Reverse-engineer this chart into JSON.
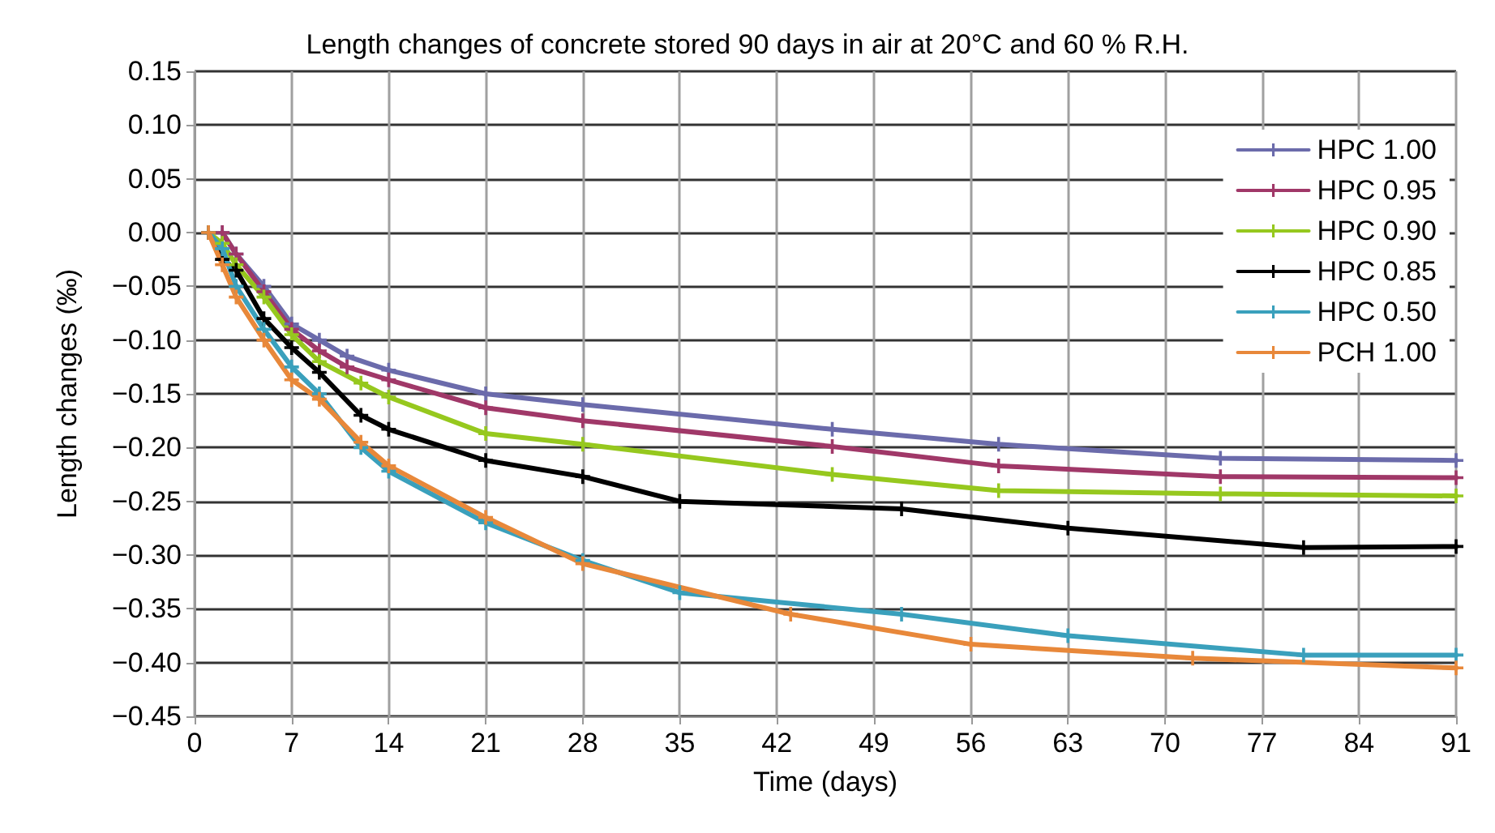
{
  "chart_data": {
    "type": "line",
    "title": "Length changes of concrete stored 90 days in air at 20°C and 60 % R.H.",
    "xlabel": "Time (days)",
    "ylabel": "Length changes (‰)",
    "xlim": [
      0,
      91
    ],
    "xticks": [
      0,
      7,
      14,
      21,
      28,
      35,
      42,
      49,
      56,
      63,
      70,
      77,
      84,
      91
    ],
    "ylim": [
      -0.45,
      0.15
    ],
    "yticks": [
      {
        "value": -0.45,
        "label": "−0.45"
      },
      {
        "value": -0.4,
        "label": "−0.40"
      },
      {
        "value": -0.35,
        "label": "−0.35"
      },
      {
        "value": -0.3,
        "label": "−0.30"
      },
      {
        "value": -0.25,
        "label": "−0.25"
      },
      {
        "value": -0.2,
        "label": "−0.20"
      },
      {
        "value": -0.15,
        "label": "−0.15"
      },
      {
        "value": -0.1,
        "label": "−0.10"
      },
      {
        "value": -0.05,
        "label": "−0.05"
      },
      {
        "value": 0,
        "label": "0.00"
      },
      {
        "value": 0.05,
        "label": "0.05"
      },
      {
        "value": 0.1,
        "label": "0.10"
      },
      {
        "value": 0.15,
        "label": "0.15"
      }
    ],
    "grid": true,
    "legend": "top right",
    "marker": "cross",
    "line_style": "solid",
    "series": [
      {
        "name": "HPC 1.00",
        "color": "#6b6bab",
        "x": [
          2,
          3,
          5,
          7,
          9,
          11,
          14,
          21,
          28,
          46,
          58,
          74,
          91
        ],
        "values": [
          0.0,
          -0.02,
          -0.05,
          -0.085,
          -0.1,
          -0.115,
          -0.128,
          -0.15,
          -0.16,
          -0.183,
          -0.197,
          -0.21,
          -0.212
        ]
      },
      {
        "name": "HPC 0.95",
        "color": "#a03868",
        "x": [
          2,
          3,
          5,
          7,
          9,
          11,
          14,
          21,
          28,
          46,
          58,
          74,
          91
        ],
        "values": [
          0.0,
          -0.02,
          -0.055,
          -0.09,
          -0.11,
          -0.125,
          -0.137,
          -0.163,
          -0.175,
          -0.199,
          -0.217,
          -0.227,
          -0.228
        ]
      },
      {
        "name": "HPC 0.90",
        "color": "#96c81e",
        "x": [
          1,
          2,
          3,
          5,
          7,
          9,
          12,
          14,
          21,
          28,
          46,
          58,
          74,
          91
        ],
        "values": [
          0.0,
          -0.01,
          -0.03,
          -0.06,
          -0.095,
          -0.12,
          -0.14,
          -0.153,
          -0.187,
          -0.197,
          -0.225,
          -0.24,
          -0.243,
          -0.245
        ]
      },
      {
        "name": "HPC 0.85",
        "color": "#000000",
        "x": [
          1,
          2,
          3,
          5,
          7,
          9,
          12,
          14,
          21,
          28,
          35,
          51,
          63,
          80,
          91
        ],
        "values": [
          0.0,
          -0.025,
          -0.035,
          -0.08,
          -0.107,
          -0.13,
          -0.17,
          -0.183,
          -0.212,
          -0.227,
          -0.25,
          -0.257,
          -0.275,
          -0.293,
          -0.292
        ]
      },
      {
        "name": "HPC 0.50",
        "color": "#3aa0bc",
        "x": [
          1,
          2,
          3,
          5,
          7,
          9,
          12,
          14,
          21,
          28,
          35,
          51,
          63,
          80,
          91
        ],
        "values": [
          0.0,
          -0.015,
          -0.05,
          -0.09,
          -0.125,
          -0.15,
          -0.2,
          -0.222,
          -0.27,
          -0.305,
          -0.335,
          -0.355,
          -0.375,
          -0.393,
          -0.393
        ]
      },
      {
        "name": "PCH 1.00",
        "color": "#e8883a",
        "x": [
          1,
          2,
          3,
          5,
          7,
          9,
          12,
          14,
          21,
          28,
          43,
          56,
          72,
          91
        ],
        "values": [
          0.0,
          -0.03,
          -0.06,
          -0.1,
          -0.137,
          -0.155,
          -0.195,
          -0.217,
          -0.265,
          -0.308,
          -0.355,
          -0.383,
          -0.396,
          -0.405
        ]
      }
    ]
  }
}
